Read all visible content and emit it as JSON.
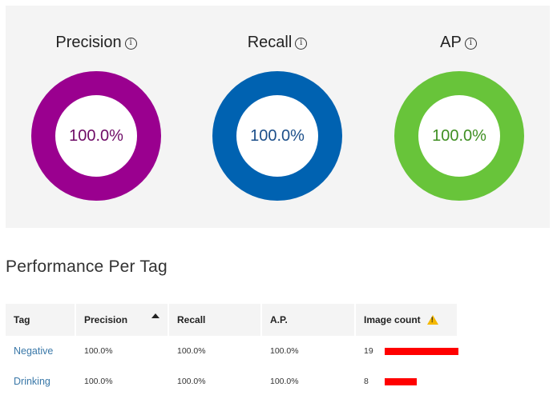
{
  "metrics": [
    {
      "label": "Precision",
      "value": "100.0%",
      "color": "#9a008f",
      "text_color": "#6e0a66",
      "fill_fraction": 1.0
    },
    {
      "label": "Recall",
      "value": "100.0%",
      "color": "#0062b1",
      "text_color": "#1c4f8a",
      "fill_fraction": 1.0
    },
    {
      "label": "AP",
      "value": "100.0%",
      "color": "#68c43a",
      "text_color": "#3f8f22",
      "fill_fraction": 1.0
    }
  ],
  "info_icon_glyph": "i",
  "section_title": "Performance Per Tag",
  "table": {
    "headers": [
      "Tag",
      "Precision",
      "Recall",
      "A.P.",
      "Image count"
    ],
    "sorted_column": "Precision",
    "sort_direction": "ascending",
    "rows": [
      {
        "tag": "Negative",
        "precision": "100.0%",
        "recall": "100.0%",
        "ap": "100.0%",
        "image_count": "19",
        "count_value": 19
      },
      {
        "tag": "Drinking",
        "precision": "100.0%",
        "recall": "100.0%",
        "ap": "100.0%",
        "image_count": "8",
        "count_value": 8
      }
    ],
    "count_bar_color": "#ff0000",
    "warning_icon": "warning-icon"
  }
}
